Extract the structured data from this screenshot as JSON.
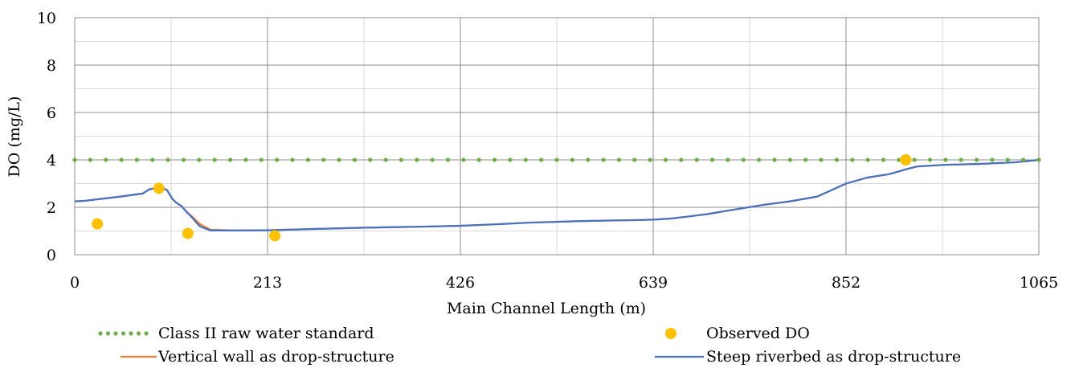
{
  "chart_data": {
    "type": "line",
    "title": "",
    "xlabel": "Main Channel Length (m)",
    "ylabel": "DO (mg/L)",
    "xlim": [
      0,
      1065
    ],
    "ylim": [
      0,
      10
    ],
    "x_major_ticks": [
      0,
      213,
      426,
      639,
      852,
      1065
    ],
    "x_tick_labels": [
      "0",
      "213",
      "426",
      "639",
      "852",
      "1065"
    ],
    "y_ticks": [
      0,
      2,
      4,
      6,
      8,
      10
    ],
    "y_tick_labels": [
      "0",
      "2",
      "4",
      "6",
      "8",
      "10"
    ],
    "grid": true,
    "legend_position": "bottom",
    "series": [
      {
        "name": "Class II raw water standard",
        "kind": "dotted-line",
        "color": "#70ad47",
        "x": [
          0,
          1065
        ],
        "y": [
          4,
          4
        ]
      },
      {
        "name": "Observed DO",
        "kind": "markers",
        "color": "#ffc000",
        "x": [
          25,
          93,
          125,
          221,
          918
        ],
        "y": [
          1.3,
          2.8,
          0.9,
          0.8,
          4.0
        ]
      },
      {
        "name": "Vertical wall as drop-structure",
        "kind": "line",
        "color": "#ed7d31",
        "x": [
          0,
          10,
          30,
          50,
          75,
          82,
          90,
          96,
          102,
          108,
          112,
          118,
          124,
          130,
          138,
          150,
          180,
          213,
          260,
          320,
          380,
          426,
          470,
          500,
          560,
          620,
          639,
          660,
          680,
          700,
          720,
          760,
          790,
          820,
          852,
          875,
          900,
          918,
          930,
          960,
          1000,
          1040,
          1065
        ],
        "y": [
          2.25,
          2.27,
          2.36,
          2.45,
          2.58,
          2.75,
          2.82,
          2.85,
          2.72,
          2.35,
          2.2,
          2.05,
          1.8,
          1.6,
          1.3,
          1.05,
          1.02,
          1.03,
          1.08,
          1.14,
          1.18,
          1.22,
          1.29,
          1.35,
          1.42,
          1.46,
          1.48,
          1.53,
          1.62,
          1.72,
          1.85,
          2.1,
          2.25,
          2.45,
          3.0,
          3.25,
          3.4,
          3.6,
          3.72,
          3.79,
          3.83,
          3.9,
          4.0
        ]
      },
      {
        "name": "Steep riverbed as drop-structure",
        "kind": "line",
        "color": "#4472c4",
        "x": [
          0,
          10,
          30,
          50,
          75,
          82,
          90,
          96,
          102,
          108,
          112,
          118,
          124,
          130,
          138,
          150,
          180,
          213,
          260,
          320,
          380,
          426,
          470,
          500,
          560,
          620,
          639,
          660,
          680,
          700,
          720,
          760,
          790,
          820,
          852,
          875,
          900,
          918,
          930,
          960,
          1000,
          1040,
          1065
        ],
        "y": [
          2.25,
          2.27,
          2.36,
          2.45,
          2.58,
          2.75,
          2.82,
          2.85,
          2.72,
          2.35,
          2.2,
          2.05,
          1.78,
          1.55,
          1.2,
          1.02,
          1.02,
          1.03,
          1.08,
          1.14,
          1.18,
          1.22,
          1.29,
          1.35,
          1.42,
          1.46,
          1.48,
          1.53,
          1.62,
          1.72,
          1.85,
          2.1,
          2.25,
          2.45,
          3.0,
          3.25,
          3.4,
          3.6,
          3.72,
          3.79,
          3.83,
          3.9,
          4.0
        ]
      }
    ]
  }
}
